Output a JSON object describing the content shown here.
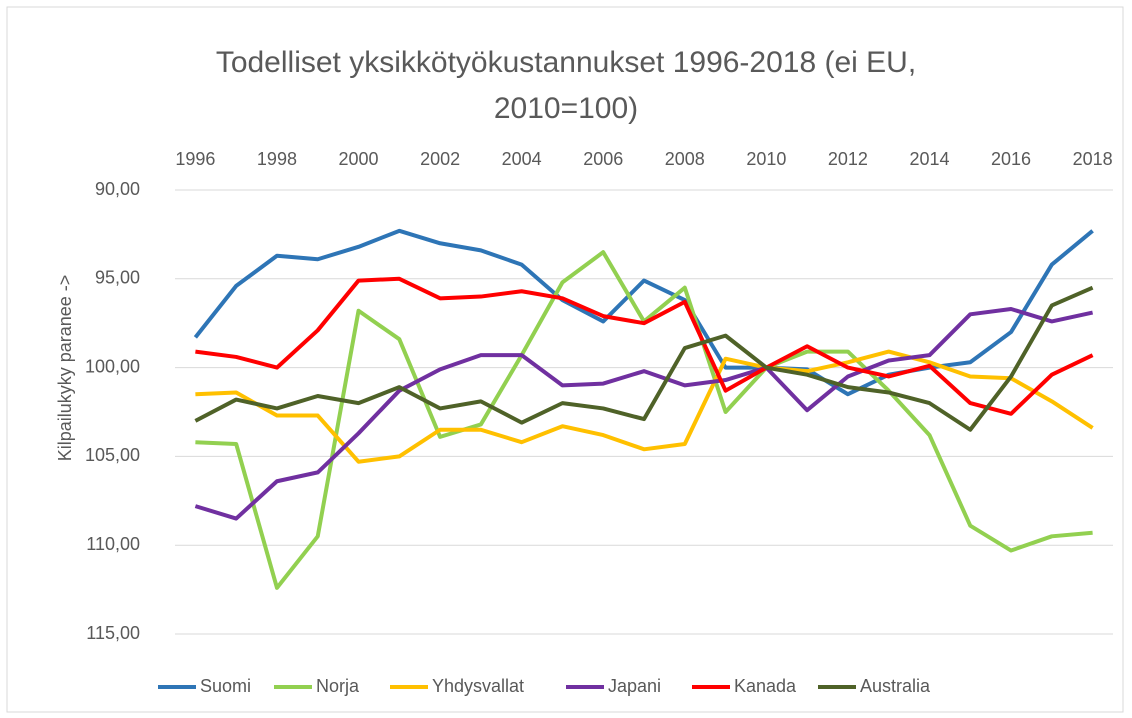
{
  "chart_data": {
    "type": "line",
    "title": "Todelliset yksikkötyökustannukset 1996-2018 (ei EU, 2010=100)",
    "y_label": "Kilpailukyky paranee ->",
    "categories": [
      "1996",
      null,
      "1998",
      null,
      "2000",
      null,
      "2002",
      null,
      "2004",
      null,
      "2006",
      null,
      "2008",
      null,
      "2010",
      null,
      "2012",
      null,
      "2014",
      null,
      "2016",
      null,
      "2018"
    ],
    "ylim": [
      90,
      115
    ],
    "y_inverted": true,
    "x_axis_position": "top",
    "yticks": [
      {
        "value": 90,
        "label": "90,00"
      },
      {
        "value": 95,
        "label": "95,00"
      },
      {
        "value": 100,
        "label": "100,00"
      },
      {
        "value": 105,
        "label": "105,00"
      },
      {
        "value": 110,
        "label": "110,00"
      },
      {
        "value": 115,
        "label": "115,00"
      }
    ],
    "grid": true,
    "legend": "bottom",
    "series": [
      {
        "name": "Suomi",
        "color": "#2e75b6",
        "values": [
          98.3,
          95.4,
          93.7,
          93.9,
          93.2,
          92.3,
          93.0,
          93.4,
          94.2,
          96.2,
          97.4,
          95.1,
          96.2,
          100.0,
          100.0,
          100.1,
          101.5,
          100.4,
          100.0,
          99.7,
          98.0,
          94.2,
          92.3
        ]
      },
      {
        "name": "Norja",
        "color": "#92d050",
        "values": [
          104.2,
          104.3,
          112.4,
          109.5,
          96.8,
          98.4,
          103.9,
          103.2,
          99.3,
          95.2,
          93.5,
          97.4,
          95.5,
          102.5,
          100.0,
          99.1,
          99.1,
          101.3,
          103.8,
          108.9,
          110.3,
          109.5,
          109.3
        ]
      },
      {
        "name": "Yhdysvallat",
        "color": "#ffc000",
        "values": [
          101.5,
          101.4,
          102.7,
          102.7,
          105.3,
          105.0,
          103.5,
          103.5,
          104.2,
          103.3,
          103.8,
          104.6,
          104.3,
          99.5,
          100.0,
          100.2,
          99.7,
          99.1,
          99.7,
          100.5,
          100.6,
          101.9,
          103.4
        ]
      },
      {
        "name": "Japani",
        "color": "#7030a0",
        "values": [
          107.8,
          108.5,
          106.4,
          105.9,
          103.7,
          101.3,
          100.1,
          99.3,
          99.3,
          101.0,
          100.9,
          100.2,
          101.0,
          100.7,
          100.0,
          102.4,
          100.5,
          99.6,
          99.3,
          97.0,
          96.7,
          97.4,
          96.9
        ]
      },
      {
        "name": "Kanada",
        "color": "#ff0000",
        "values": [
          99.1,
          99.4,
          100.0,
          97.9,
          95.1,
          95.0,
          96.1,
          96.0,
          95.7,
          96.1,
          97.1,
          97.5,
          96.3,
          101.3,
          100.0,
          98.8,
          100.0,
          100.5,
          99.9,
          102.0,
          102.6,
          100.4,
          99.3
        ]
      },
      {
        "name": "Australia",
        "color": "#4f6228",
        "values": [
          103.0,
          101.8,
          102.3,
          101.6,
          102.0,
          101.1,
          102.3,
          101.9,
          103.1,
          102.0,
          102.3,
          102.9,
          98.9,
          98.2,
          100.0,
          100.4,
          101.1,
          101.4,
          102.0,
          103.5,
          100.5,
          96.5,
          95.5
        ]
      }
    ]
  }
}
